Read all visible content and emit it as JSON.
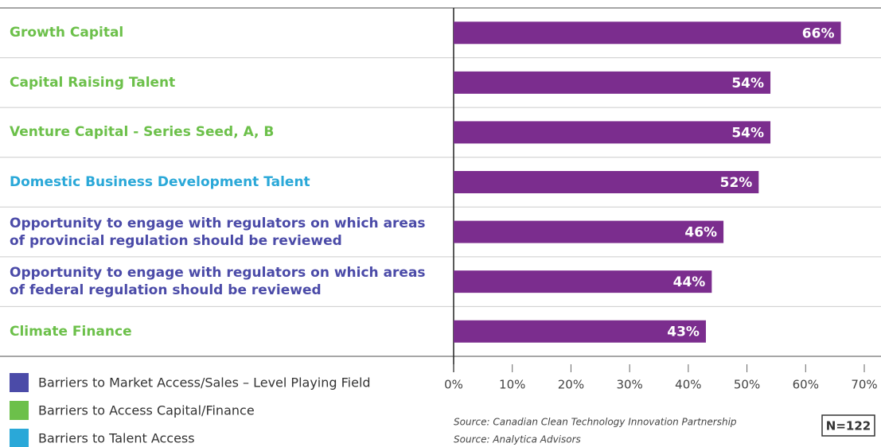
{
  "chart_data": {
    "type": "bar",
    "orientation": "horizontal",
    "categories": [
      "Growth Capital",
      "Capital Raising Talent",
      "Venture Capital - Series Seed, A, B",
      "Domestic Business Development Talent",
      "Opportunity to engage with regulators on which areas of provincial regulation should be reviewed",
      "Opportunity to engage with regulators on which areas of federal regulation should be reviewed",
      "Climate Finance"
    ],
    "label_colors": [
      "#6cc04a",
      "#6cc04a",
      "#6cc04a",
      "#2aa8d8",
      "#4b4ba8",
      "#4b4ba8",
      "#6cc04a"
    ],
    "values": [
      66,
      54,
      54,
      52,
      46,
      44,
      43
    ],
    "value_labels": [
      "66%",
      "54%",
      "54%",
      "52%",
      "46%",
      "44%",
      "43%"
    ],
    "color": "#7b2d8e",
    "xlim": [
      0,
      70
    ],
    "xticks": [
      {
        "value": 0,
        "label": "0%"
      },
      {
        "value": 10,
        "label": "10%"
      },
      {
        "value": 20,
        "label": "20%"
      },
      {
        "value": 30,
        "label": "30%"
      },
      {
        "value": 40,
        "label": "40%"
      },
      {
        "value": 50,
        "label": "50%"
      },
      {
        "value": 60,
        "label": "60%"
      },
      {
        "value": 70,
        "label": "70%"
      }
    ],
    "legend": [
      {
        "name": "Barriers to Market Access/Sales – Level Playing Field",
        "color": "#4b4ba8"
      },
      {
        "name": "Barriers to Access Capital/Finance",
        "color": "#6cc04a"
      },
      {
        "name": "Barriers to Talent Access",
        "color": "#2aa8d8"
      }
    ],
    "sources": [
      "Source: Canadian Clean Technology Innovation Partnership",
      "Source: Analytica Advisors"
    ],
    "annotation": "N=122"
  }
}
